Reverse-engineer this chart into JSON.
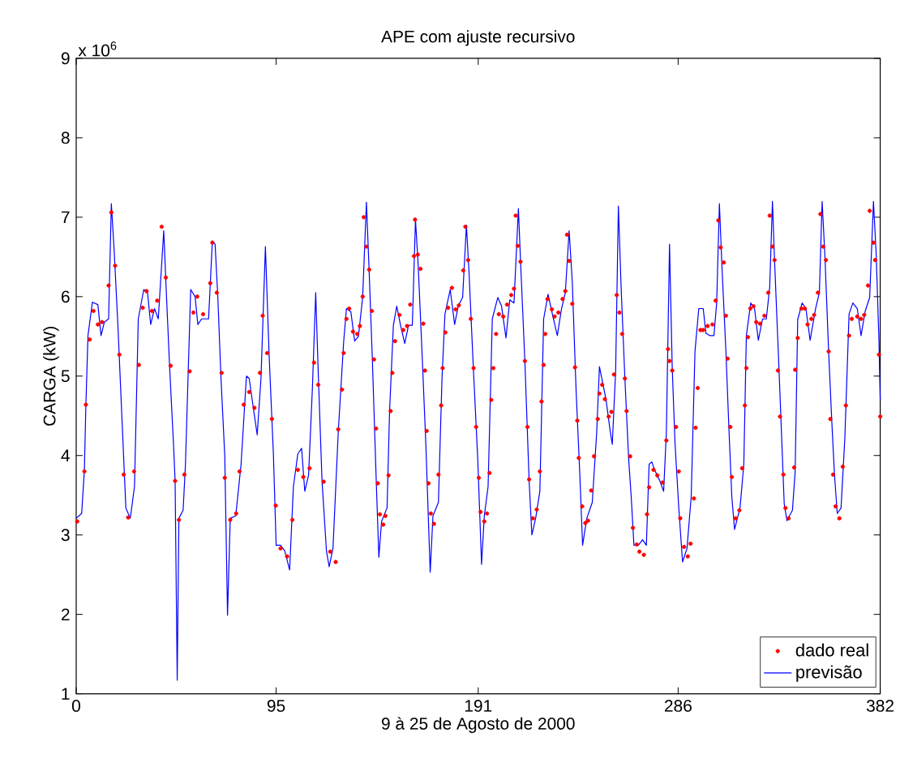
{
  "chart_data": {
    "type": "line",
    "title": "APE com ajuste recursivo",
    "xlabel": "9 à 25 de Agosto de 2000",
    "ylabel": "CARGA (kW)",
    "annotations": [
      "x 10$^{6}$"
    ],
    "xlim": [
      0,
      382
    ],
    "ylim": [
      1,
      9
    ],
    "xticks": [
      0,
      95,
      191,
      286,
      382
    ],
    "yticks": [
      1,
      2,
      3,
      4,
      5,
      6,
      7,
      8,
      9
    ],
    "legend": "bottom right",
    "grid": false,
    "series": [
      {
        "name": "dado real",
        "type": "scatter",
        "marker": "circle",
        "color": "#ff0000",
        "x": [
          0.5,
          3.9,
          4.6,
          6.4,
          8.2,
          10.3,
          12.3,
          15.4,
          16.7,
          18.5,
          20.5,
          22.6,
          24.7,
          27.5,
          29.8,
          31.6,
          33.4,
          36.0,
          38.5,
          40.6,
          42.6,
          44.9,
          47.0,
          48.8,
          51.4,
          53.9,
          55.7,
          57.5,
          60.3,
          63.7,
          64.7,
          66.8,
          69.1,
          70.6,
          73.2,
          76.0,
          77.6,
          79.6,
          82.2,
          84.7,
          87.3,
          88.6,
          90.7,
          93.0,
          94.8,
          97.1,
          100.2,
          102.7,
          105.3,
          107.9,
          110.9,
          113.0,
          115.0,
          117.6,
          120.7,
          123.3,
          124.5,
          126.3,
          127.1,
          128.4,
          129.7,
          131.5,
          133.5,
          134.8,
          136.1,
          136.6,
          137.9,
          139.2,
          140.5,
          141.5,
          142.5,
          143.3,
          144.3,
          145.9,
          146.9,
          148.4,
          149.4,
          150.2,
          151.5,
          153.6,
          155.4,
          157.2,
          158.7,
          160.5,
          161.0,
          162.3,
          163.6,
          164.9,
          165.7,
          166.5,
          167.4,
          168.5,
          170.0,
          172.1,
          173.4,
          174.1,
          175.4,
          176.7,
          178.5,
          180.3,
          181.8,
          183.9,
          184.9,
          186.2,
          187.5,
          188.8,
          190.0,
          191.3,
          192.1,
          193.9,
          195.2,
          196.4,
          197.2,
          198.2,
          199.5,
          200.8,
          202.9,
          204.7,
          206.7,
          208.0,
          208.8,
          209.8,
          211.1,
          213.2,
          214.4,
          215.2,
          217.0,
          218.8,
          220.3,
          221.1,
          222.1,
          222.9,
          223.9,
          226.0,
          227.3,
          229.1,
          231.1,
          232.4,
          233.2,
          234.2,
          235.7,
          237.0,
          238.1,
          238.8,
          240.4,
          241.9,
          243.2,
          244.7,
          246.0,
          247.8,
          248.6,
          249.9,
          251.2,
          253.0,
          254.3,
          255.5,
          256.8,
          258.1,
          259.4,
          260.7,
          261.5,
          263.2,
          264.5,
          266.3,
          267.6,
          269.7,
          271.2,
          272.2,
          274.3,
          276.1,
          278.6,
          280.4,
          281.2,
          281.9,
          283.2,
          285.0,
          286.3,
          287.0,
          288.8,
          290.6,
          291.9,
          293.5,
          294.3,
          295.3,
          296.6,
          297.9,
          300.0,
          302.3,
          303.8,
          305.1,
          306.2,
          307.7,
          308.7,
          309.5,
          310.8,
          311.5,
          313.3,
          315.1,
          316.4,
          317.7,
          318.4,
          319.2,
          320.3,
          321.8,
          323.1,
          324.9,
          327.0,
          328.8,
          329.5,
          330.8,
          331.8,
          333.4,
          334.4,
          336.0,
          337.0,
          338.5,
          341.1,
          341.6,
          342.8,
          344.6,
          346.2,
          347.5,
          349.3,
          350.6,
          352.4,
          353.6,
          354.9,
          356.2,
          357.5,
          358.3,
          359.6,
          360.8,
          362.6,
          364.2,
          365.7,
          367.2,
          368.5,
          371.1,
          372.9,
          374.4,
          376.2,
          377.0,
          378.8,
          379.6,
          381.4,
          382.0
        ],
        "values": [
          3.17,
          3.8,
          4.64,
          5.46,
          5.82,
          5.65,
          5.68,
          6.14,
          7.06,
          6.39,
          5.27,
          3.76,
          3.22,
          3.8,
          5.14,
          5.86,
          6.07,
          5.82,
          5.95,
          6.88,
          6.24,
          5.13,
          3.68,
          3.19,
          3.76,
          5.06,
          5.8,
          6.0,
          5.78,
          6.17,
          6.68,
          6.05,
          5.04,
          3.72,
          3.19,
          3.27,
          3.8,
          4.64,
          4.8,
          4.6,
          5.04,
          5.76,
          5.29,
          4.46,
          3.37,
          2.83,
          2.73,
          3.19,
          3.82,
          3.73,
          3.84,
          5.17,
          4.89,
          3.67,
          2.79,
          2.66,
          4.33,
          4.83,
          5.29,
          5.72,
          5.85,
          5.56,
          5.53,
          5.63,
          6.0,
          7.0,
          6.63,
          6.34,
          5.82,
          5.21,
          4.34,
          3.65,
          3.26,
          3.13,
          3.24,
          3.75,
          4.56,
          5.04,
          5.44,
          5.77,
          5.58,
          5.63,
          5.9,
          6.51,
          6.97,
          6.53,
          6.35,
          5.66,
          5.07,
          4.31,
          3.65,
          3.27,
          3.14,
          3.76,
          4.63,
          5.1,
          5.55,
          5.86,
          6.11,
          5.84,
          5.89,
          6.33,
          6.88,
          6.46,
          5.72,
          5.1,
          4.36,
          3.72,
          3.29,
          3.17,
          3.27,
          3.78,
          4.7,
          5.1,
          5.53,
          5.78,
          5.75,
          5.9,
          6.02,
          6.1,
          7.02,
          6.64,
          6.44,
          5.19,
          4.36,
          3.7,
          3.21,
          3.32,
          3.8,
          4.68,
          5.14,
          5.53,
          5.97,
          5.84,
          5.75,
          5.8,
          5.97,
          6.07,
          6.78,
          6.45,
          5.91,
          5.11,
          4.44,
          3.97,
          3.36,
          3.15,
          3.18,
          3.56,
          3.99,
          4.46,
          4.78,
          4.89,
          4.71,
          4.49,
          4.55,
          5.02,
          6.02,
          5.8,
          5.53,
          4.97,
          4.56,
          3.99,
          3.09,
          2.88,
          2.79,
          2.75,
          3.26,
          3.6,
          3.82,
          3.75,
          3.66,
          4.19,
          5.34,
          5.19,
          5.07,
          4.36,
          3.8,
          3.21,
          2.85,
          2.73,
          2.89,
          3.46,
          4.35,
          4.85,
          5.58,
          5.58,
          5.63,
          5.65,
          5.95,
          6.96,
          6.62,
          6.43,
          5.76,
          5.22,
          4.36,
          3.73,
          3.21,
          3.31,
          3.84,
          4.63,
          5.1,
          5.49,
          5.85,
          5.88,
          5.68,
          5.66,
          5.76,
          6.05,
          7.02,
          6.63,
          6.46,
          5.07,
          4.49,
          3.76,
          3.34,
          3.21,
          3.85,
          5.08,
          5.48,
          5.85,
          5.85,
          5.65,
          5.72,
          5.77,
          6.05,
          7.04,
          6.63,
          6.46,
          5.31,
          4.46,
          3.76,
          3.36,
          3.21,
          3.86,
          4.63,
          5.51,
          5.72,
          5.75,
          5.72,
          5.77,
          6.14,
          7.08,
          6.68,
          6.46,
          5.27,
          4.49
        ]
      },
      {
        "name": "previsão",
        "type": "line",
        "color": "#0000ff",
        "x": [
          0,
          2.6,
          3.9,
          4.6,
          5.6,
          7.7,
          10.3,
          11.8,
          13.4,
          15.4,
          16.7,
          18,
          19.8,
          21.8,
          23.6,
          25.7,
          27.7,
          29.5,
          32.1,
          33.9,
          35.4,
          37.2,
          39,
          41.6,
          42.6,
          44.4,
          46.2,
          47,
          48,
          48.8,
          50.8,
          51.9,
          54.4,
          56.5,
          57.8,
          59.6,
          62.9,
          64.7,
          66,
          67.3,
          68.8,
          70.6,
          71.9,
          73.2,
          75.8,
          78.3,
          80.9,
          82.2,
          84,
          86,
          87.8,
          89.9,
          91.7,
          93.7,
          95,
          97.1,
          99.1,
          101.4,
          103.2,
          105.3,
          107.1,
          108.6,
          110.4,
          112.2,
          113.8,
          115,
          116.8,
          118.9,
          120.2,
          122,
          124.5,
          127.1,
          128.4,
          130.5,
          132.3,
          134.1,
          136.1,
          137.9,
          139.2,
          140.7,
          142.5,
          143.8,
          145.1,
          147.7,
          148.9,
          150.7,
          152.3,
          154.1,
          156.1,
          157.9,
          159.7,
          161.2,
          162.5,
          164.4,
          166.1,
          168.2,
          169.5,
          172.1,
          173.8,
          175.2,
          177.7,
          179.8,
          181.5,
          183.6,
          185.4,
          186.6,
          188.7,
          190.8,
          192.6,
          193.9,
          195.7,
          197.7,
          200.3,
          202.1,
          204.2,
          206,
          208,
          210.1,
          211.1,
          213.2,
          215.2,
          216.5,
          218.3,
          220.3,
          222.1,
          224.2,
          226.5,
          228.6,
          230.6,
          232.4,
          234.2,
          235.7,
          237.5,
          239.3,
          240.6,
          242.6,
          245.2,
          247.3,
          248.6,
          251.7,
          253.7,
          254.7,
          256.3,
          257.6,
          258.9,
          260.7,
          262.5,
          263.7,
          265.0,
          267.1,
          269.1,
          270.9,
          272.2,
          273.5,
          274.8,
          277.3,
          279.1,
          280.4,
          281.9,
          283.2,
          284.5,
          286.3,
          288.1,
          290.2,
          292.2,
          294,
          295.8,
          297.9,
          299.2,
          301,
          303,
          304.3,
          305.6,
          306.9,
          308.7,
          310.2,
          311.5,
          312.8,
          315.4,
          317.2,
          318.4,
          320.5,
          322.3,
          324.1,
          326.1,
          327.9,
          329.5,
          330.8,
          331.8,
          333.9,
          335.2,
          336.4,
          337.7,
          340.3,
          341.6,
          342.8,
          344.9,
          346.7,
          348.7,
          351.3,
          353.1,
          354.4,
          355.7,
          357.5,
          359.0,
          360.3,
          361.6,
          363.4,
          365.2,
          367.2,
          369.0,
          371.1,
          372.9,
          374.9,
          377.0,
          378.8,
          380.1,
          381.4,
          382
        ],
        "values": [
          3.21,
          3.27,
          3.82,
          4.63,
          5.51,
          5.93,
          5.9,
          5.51,
          5.68,
          5.72,
          7.17,
          6.6,
          5.65,
          4.43,
          3.34,
          3.21,
          3.61,
          5.72,
          6.09,
          6.05,
          5.65,
          5.85,
          5.72,
          6.83,
          6.19,
          5.11,
          4.16,
          3.68,
          1.17,
          3.21,
          3.31,
          3.88,
          6.09,
          6.0,
          5.65,
          5.72,
          5.72,
          6.7,
          6.66,
          5.99,
          4.97,
          3.99,
          1.99,
          3.21,
          3.24,
          3.88,
          5.0,
          4.97,
          4.63,
          4.26,
          4.97,
          6.63,
          5.24,
          4.02,
          2.87,
          2.87,
          2.8,
          2.56,
          3.61,
          4.02,
          4.09,
          3.55,
          3.75,
          4.83,
          6.05,
          5.04,
          3.68,
          2.8,
          2.6,
          2.83,
          4.29,
          5.44,
          5.85,
          5.81,
          5.44,
          5.5,
          5.99,
          7.19,
          6.31,
          5.22,
          3.73,
          2.72,
          3.17,
          3.34,
          4.56,
          5.64,
          5.88,
          5.64,
          5.41,
          5.64,
          5.64,
          6.97,
          6.39,
          5.24,
          4.16,
          2.53,
          3.24,
          3.41,
          4.97,
          5.78,
          6.09,
          5.65,
          5.88,
          5.99,
          6.9,
          6.33,
          5.1,
          3.95,
          2.63,
          3.24,
          3.61,
          5.72,
          5.99,
          5.88,
          5.48,
          5.96,
          5.92,
          7.11,
          6.46,
          5.17,
          3.68,
          3.0,
          3.21,
          3.55,
          5.72,
          6.03,
          5.75,
          5.51,
          5.85,
          6.05,
          6.83,
          6.19,
          4.83,
          3.75,
          2.87,
          3.21,
          3.41,
          4.29,
          5.12,
          4.71,
          4.31,
          4.14,
          5.06,
          7.14,
          6.12,
          4.97,
          3.95,
          3.48,
          2.87,
          2.87,
          2.94,
          2.87,
          3.89,
          3.92,
          3.82,
          3.68,
          3.55,
          4.29,
          6.66,
          5.1,
          4.16,
          3.34,
          2.66,
          2.83,
          3.48,
          5.31,
          5.85,
          5.85,
          5.54,
          5.51,
          5.51,
          5.92,
          7.17,
          6.33,
          5.31,
          4.29,
          3.48,
          3.07,
          3.34,
          3.89,
          5.51,
          5.92,
          5.85,
          5.45,
          5.72,
          5.72,
          6.12,
          7.2,
          6.46,
          5.1,
          4.21,
          3.39,
          3.18,
          3.31,
          3.8,
          5.71,
          5.92,
          5.85,
          5.45,
          5.85,
          6.05,
          7.2,
          6.53,
          5.31,
          4.43,
          3.75,
          3.27,
          3.34,
          4.22,
          5.78,
          5.92,
          5.85,
          5.51,
          5.82,
          5.99,
          7.2,
          6.53,
          5.45,
          4.7
        ]
      }
    ]
  }
}
